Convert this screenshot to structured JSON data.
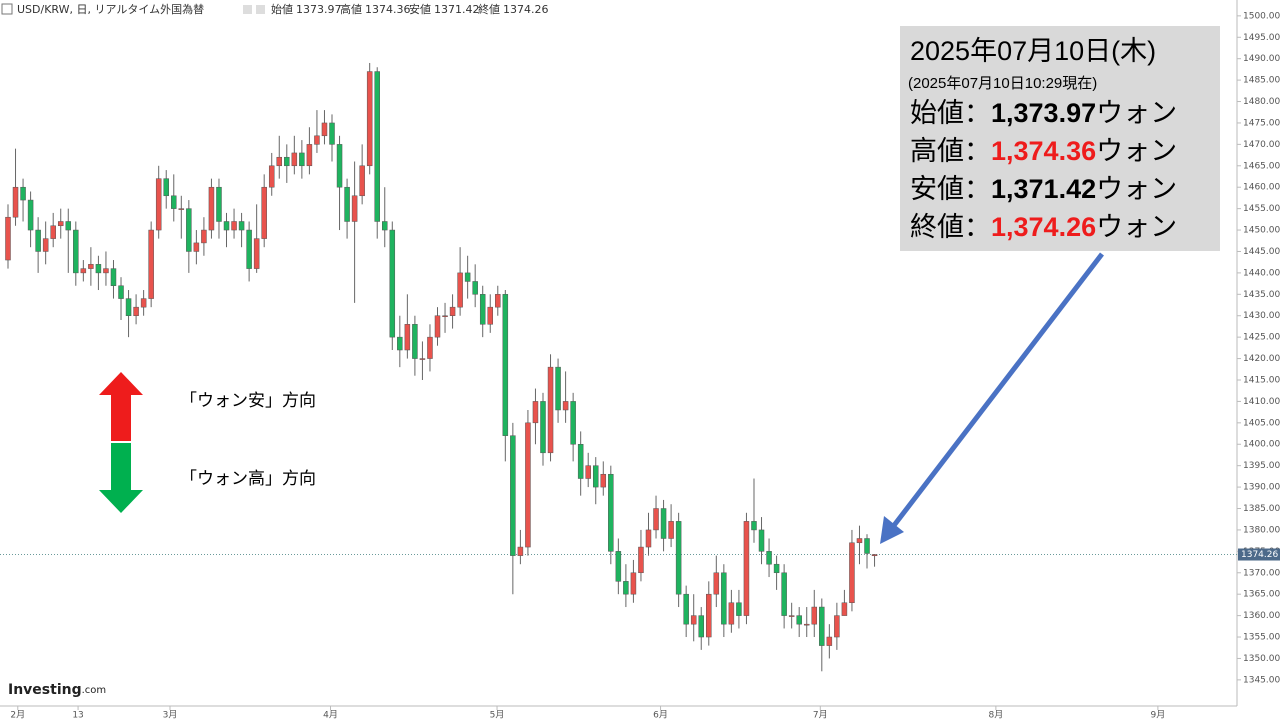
{
  "chart_data": {
    "type": "candlestick",
    "header": {
      "symbol": "USD/KRW, 日, リアルタイム外国為替",
      "open_label": "始値",
      "high_label": "高値",
      "low_label": "安値",
      "close_label": "終値"
    },
    "up_color": "#e8534d",
    "down_color": "#1fb35f",
    "open": [
      1443,
      1453,
      1460,
      1457,
      1450,
      1445,
      1448,
      1451,
      1452,
      1450,
      1440,
      1441,
      1442,
      1440,
      1441,
      1437,
      1434,
      1430,
      1432,
      1434,
      1450,
      1462,
      1458,
      1455,
      1455,
      1445,
      1447,
      1450,
      1460,
      1452,
      1450,
      1452,
      1450,
      1441,
      1448,
      1460,
      1465,
      1467,
      1465,
      1468,
      1465,
      1470,
      1472,
      1475,
      1470,
      1460,
      1452,
      1458,
      1465,
      1487,
      1452,
      1450,
      1425,
      1422,
      1428,
      1420,
      1420,
      1425,
      1430,
      1430,
      1432,
      1440,
      1438,
      1435,
      1428,
      1432,
      1435,
      1402,
      1374,
      1376,
      1405,
      1410,
      1398,
      1418,
      1408,
      1410,
      1400,
      1392,
      1395,
      1390,
      1393,
      1375,
      1368,
      1365,
      1370,
      1376,
      1380,
      1385,
      1378,
      1382,
      1365,
      1358,
      1360,
      1355,
      1365,
      1370,
      1358,
      1363,
      1360,
      1382,
      1380,
      1375,
      1372,
      1370,
      1360,
      1360,
      1358,
      1358,
      1362,
      1353,
      1355,
      1360,
      1363,
      1377,
      1378,
      1373.97
    ],
    "high": [
      1456,
      1469,
      1462,
      1459,
      1453,
      1452,
      1454,
      1455,
      1455,
      1452,
      1443,
      1446,
      1444,
      1445,
      1443,
      1439,
      1436,
      1435,
      1436,
      1452,
      1465,
      1464,
      1463,
      1458,
      1457,
      1450,
      1453,
      1462,
      1462,
      1454,
      1455,
      1454,
      1452,
      1456,
      1463,
      1468,
      1472,
      1470,
      1472,
      1471,
      1474,
      1478,
      1478,
      1477,
      1472,
      1462,
      1466,
      1470,
      1489,
      1488,
      1460,
      1452,
      1430,
      1435,
      1430,
      1424,
      1428,
      1432,
      1433,
      1435,
      1446,
      1444,
      1442,
      1437,
      1435,
      1437,
      1436,
      1405,
      1380,
      1408,
      1413,
      1412,
      1421,
      1420,
      1417,
      1412,
      1403,
      1398,
      1397,
      1396,
      1395,
      1378,
      1372,
      1373,
      1380,
      1384,
      1388,
      1387,
      1386,
      1384,
      1367,
      1365,
      1362,
      1368,
      1374,
      1372,
      1366,
      1366,
      1384,
      1392,
      1383,
      1378,
      1374,
      1372,
      1363,
      1362,
      1362,
      1366,
      1364,
      1358,
      1363,
      1366,
      1380,
      1381,
      1379,
      1374.36
    ],
    "low": [
      1441,
      1451,
      1452,
      1446,
      1440,
      1442,
      1446,
      1448,
      1440,
      1437,
      1438,
      1437,
      1436,
      1437,
      1434,
      1429,
      1425,
      1428,
      1430,
      1432,
      1448,
      1455,
      1452,
      1448,
      1440,
      1442,
      1444,
      1448,
      1448,
      1446,
      1448,
      1446,
      1438,
      1440,
      1446,
      1458,
      1462,
      1461,
      1463,
      1462,
      1463,
      1468,
      1470,
      1466,
      1450,
      1448,
      1433,
      1456,
      1463,
      1448,
      1446,
      1422,
      1418,
      1420,
      1416,
      1415,
      1417,
      1423,
      1426,
      1427,
      1430,
      1434,
      1432,
      1425,
      1426,
      1430,
      1396,
      1365,
      1372,
      1374,
      1400,
      1395,
      1396,
      1405,
      1405,
      1396,
      1388,
      1390,
      1386,
      1388,
      1372,
      1365,
      1362,
      1363,
      1368,
      1374,
      1378,
      1375,
      1376,
      1362,
      1355,
      1354,
      1352,
      1353,
      1362,
      1355,
      1356,
      1357,
      1358,
      1377,
      1372,
      1369,
      1366,
      1357,
      1357,
      1355,
      1355,
      1355,
      1347,
      1350,
      1352,
      1360,
      1361,
      1372,
      1371,
      1371.42
    ],
    "close": [
      1453,
      1460,
      1457,
      1450,
      1445,
      1448,
      1451,
      1452,
      1450,
      1440,
      1441,
      1442,
      1440,
      1441,
      1437,
      1434,
      1430,
      1432,
      1434,
      1450,
      1462,
      1458,
      1455,
      1455,
      1445,
      1447,
      1450,
      1460,
      1452,
      1450,
      1452,
      1450,
      1441,
      1448,
      1460,
      1465,
      1467,
      1465,
      1468,
      1465,
      1470,
      1472,
      1475,
      1470,
      1460,
      1452,
      1458,
      1465,
      1487,
      1452,
      1450,
      1425,
      1422,
      1428,
      1420,
      1420,
      1425,
      1430,
      1430,
      1432,
      1440,
      1438,
      1435,
      1428,
      1432,
      1435,
      1402,
      1374,
      1376,
      1405,
      1410,
      1398,
      1418,
      1408,
      1410,
      1400,
      1392,
      1395,
      1390,
      1393,
      1375,
      1368,
      1365,
      1370,
      1376,
      1380,
      1385,
      1378,
      1382,
      1365,
      1358,
      1360,
      1355,
      1365,
      1370,
      1358,
      1363,
      1360,
      1382,
      1380,
      1375,
      1372,
      1370,
      1360,
      1360,
      1358,
      1358,
      1362,
      1353,
      1355,
      1360,
      1363,
      1377,
      1378,
      1374.5,
      1374.26
    ],
    "xlim": [
      -1.06,
      163.1
    ],
    "xticks": [
      {
        "value": 1.3,
        "label": "2月"
      },
      {
        "value": 9.3,
        "label": "13"
      },
      {
        "value": 21.5,
        "label": "3月"
      },
      {
        "value": 42.8,
        "label": "4月"
      },
      {
        "value": 64.9,
        "label": "5月"
      },
      {
        "value": 86.6,
        "label": "6月"
      },
      {
        "value": 107.8,
        "label": "7月"
      },
      {
        "value": 131.1,
        "label": "8月"
      },
      {
        "value": 152.6,
        "label": "9月"
      }
    ],
    "ylim": [
      1338.9,
      1503.7
    ],
    "yticks": [
      {
        "value": 1345,
        "label": "1345.00"
      },
      {
        "value": 1350,
        "label": "1350.00"
      },
      {
        "value": 1355,
        "label": "1355.00"
      },
      {
        "value": 1360,
        "label": "1360.00"
      },
      {
        "value": 1365,
        "label": "1365.00"
      },
      {
        "value": 1370,
        "label": "1370.00"
      },
      {
        "value": 1375,
        "label": "1375.00"
      },
      {
        "value": 1380,
        "label": "1380.00"
      },
      {
        "value": 1385,
        "label": "1385.00"
      },
      {
        "value": 1390,
        "label": "1390.00"
      },
      {
        "value": 1395,
        "label": "1395.00"
      },
      {
        "value": 1400,
        "label": "1400.00"
      },
      {
        "value": 1405,
        "label": "1405.00"
      },
      {
        "value": 1410,
        "label": "1410.00"
      },
      {
        "value": 1415,
        "label": "1415.00"
      },
      {
        "value": 1420,
        "label": "1420.00"
      },
      {
        "value": 1425,
        "label": "1425.00"
      },
      {
        "value": 1430,
        "label": "1430.00"
      },
      {
        "value": 1435,
        "label": "1435.00"
      },
      {
        "value": 1440,
        "label": "1440.00"
      },
      {
        "value": 1445,
        "label": "1445.00"
      },
      {
        "value": 1450,
        "label": "1450.00"
      },
      {
        "value": 1455,
        "label": "1455.00"
      },
      {
        "value": 1460,
        "label": "1460.00"
      },
      {
        "value": 1465,
        "label": "1465.00"
      },
      {
        "value": 1470,
        "label": "1470.00"
      },
      {
        "value": 1475,
        "label": "1475.00"
      },
      {
        "value": 1480,
        "label": "1480.00"
      },
      {
        "value": 1485,
        "label": "1485.00"
      },
      {
        "value": 1490,
        "label": "1490.00"
      },
      {
        "value": 1495,
        "label": "1495.00"
      },
      {
        "value": 1500,
        "label": "1500.00"
      }
    ],
    "annotations": {
      "weak_won": "「ウォン安」方向",
      "strong_won": "「ウォン高」方向"
    },
    "logo": {
      "brand": "Investing",
      "suffix": ".com"
    },
    "info_box": {
      "date": "2025年07月10日(木)",
      "timestamp": "(2025年07月10日10:29現在)",
      "rows": [
        {
          "label": "始値：",
          "value": "1,373.97",
          "unit": "ウォン",
          "highlight": false
        },
        {
          "label": "高値：",
          "value": "1,374.36",
          "unit": "ウォン",
          "highlight": true
        },
        {
          "label": "安値：",
          "value": "1,371.42",
          "unit": "ウォン",
          "highlight": false
        },
        {
          "label": "終値：",
          "value": "1,374.26",
          "unit": "ウォン",
          "highlight": true
        }
      ]
    }
  }
}
